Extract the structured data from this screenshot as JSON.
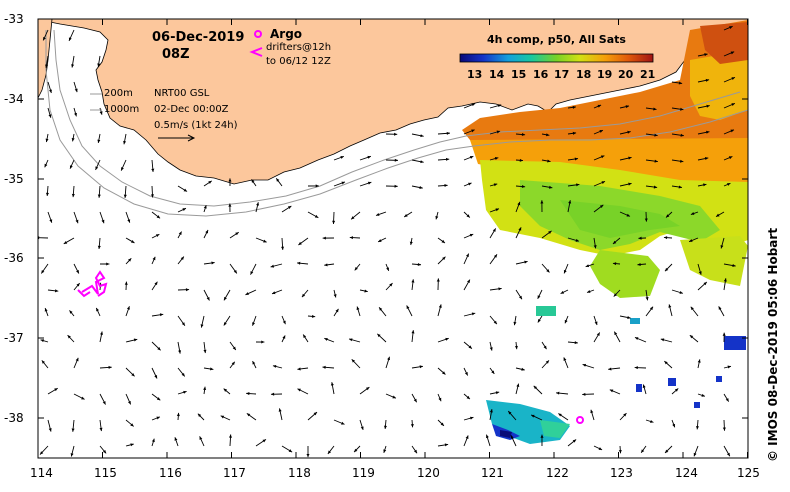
{
  "header": {
    "date": "06-Dec-2019",
    "hour": "08Z",
    "argo_label": "Argo",
    "drifters_label": "drifters@12h",
    "drifters_range": "to 06/12 12Z"
  },
  "legend": {
    "isobath_200": "200m",
    "isobath_1000": "1000m",
    "currents_source": "NRT00 GSL",
    "currents_time": "02-Dec 00:00Z",
    "scale_arrow": "0.5m/s (1kt 24h)"
  },
  "colorbar": {
    "title": "4h comp, p50, All Sats",
    "ticks": [
      "13",
      "14",
      "15",
      "16",
      "17",
      "18",
      "19",
      "20",
      "21"
    ],
    "min": 12.5,
    "max": 21.5
  },
  "axes": {
    "x_ticks": [
      "114",
      "115",
      "116",
      "117",
      "118",
      "119",
      "120",
      "121",
      "122",
      "123",
      "124",
      "125"
    ],
    "y_ticks": [
      "-33",
      "-34",
      "-35",
      "-36",
      "-37",
      "-38"
    ],
    "lon_range": [
      114,
      125
    ],
    "lat_range": [
      -38.5,
      -33
    ]
  },
  "credit": "© IMOS 08-Dec-2019 05:06 Hobart",
  "colors": {
    "land": "#FCC79C",
    "argo": "#FF00FF",
    "drifter": "#FF00FF",
    "isobath": "#9a9a9a"
  }
}
